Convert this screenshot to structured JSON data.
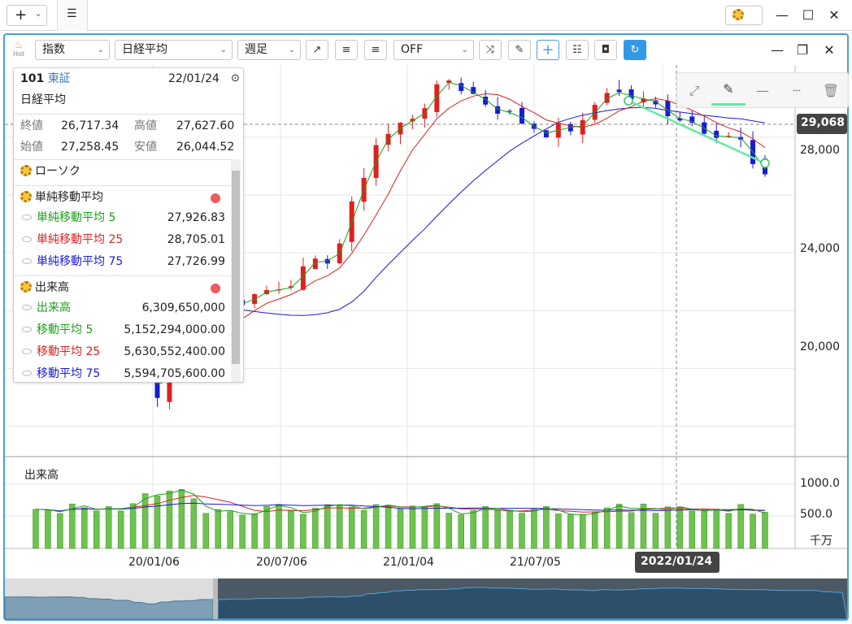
{
  "window_controls": {
    "add": "+",
    "caret": "⌄",
    "list": "☰",
    "minimize": "—",
    "maximize": "☐",
    "close": "✕"
  },
  "toolbar": {
    "hot": "Hot",
    "type_select": "指数",
    "symbol_select": "日経平均",
    "period_select": "週足",
    "mode_select": "OFF",
    "chart_minimize": "—",
    "chart_restore": "❐",
    "chart_close": "✕"
  },
  "info": {
    "code": "101",
    "market": "東証",
    "date": "22/01/24",
    "name": "日経平均",
    "close_label": "終値",
    "close": "26,717.34",
    "high_label": "高値",
    "high": "27,627.60",
    "open_label": "始値",
    "open": "27,258.45",
    "low_label": "安値",
    "low": "26,044.52",
    "candle": "ローソク",
    "sma": "単純移動平均",
    "sma5_label": "単純移動平均 5",
    "sma5": "27,926.83",
    "sma25_label": "単純移動平均 25",
    "sma25": "28,705.01",
    "sma75_label": "単純移動平均 75",
    "sma75": "27,726.99",
    "volume": "出来高",
    "vol_label": "出来高",
    "vol": "6,309,650,000",
    "vma5_label": "移動平均 5",
    "vma5": "5,152,294,000.00",
    "vma25_label": "移動平均 25",
    "vma25": "5,630,552,400.00",
    "vma75_label": "移動平均 75",
    "vma75": "5,594,705,600.00"
  },
  "price_axis": {
    "ticks": [
      "28,000",
      "24,000",
      "20,000"
    ],
    "current": "29,068"
  },
  "volume_panel": {
    "title": "出来高",
    "ticks": [
      "1000.0",
      "500.0"
    ],
    "unit": "千万"
  },
  "time_axis": {
    "ticks": [
      "20/01/06",
      "20/07/06",
      "21/01/04",
      "21/07/05"
    ],
    "cursor": "2022/01/24"
  },
  "colors": {
    "up": "#e02020",
    "down": "#1a1ad8",
    "sma5": "#1aa01a",
    "sma25": "#e02020",
    "sma75": "#1a1ad8",
    "volume": "#6ec24e",
    "accent": "#4a9fd8",
    "trend": "#67e8a0"
  },
  "chart_data": {
    "type": "candlestick",
    "price_ticks": [
      28000,
      24000,
      20000
    ],
    "ylim": [
      17000,
      30500
    ],
    "current_price": 29068,
    "last_candle": {
      "date": "2022/01/24",
      "open": 27258.45,
      "high": 27627.6,
      "low": 26044.52,
      "close": 26717.34
    },
    "sma": {
      "5": 27926.83,
      "25": 28705.01,
      "75": 27726.99
    },
    "volume_ticks": [
      1000,
      500
    ],
    "volume_unit": "千万",
    "x_ticks": [
      "20/01/06",
      "20/07/06",
      "21/01/04",
      "21/07/05"
    ]
  }
}
